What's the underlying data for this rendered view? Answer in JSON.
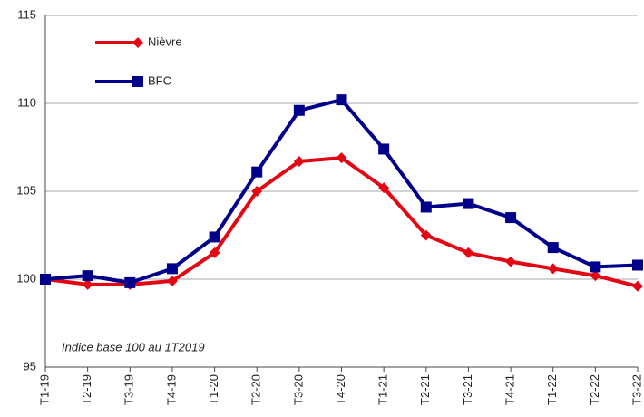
{
  "chart_data": {
    "type": "line",
    "annotation": "Indice base 100 au 1T2019",
    "categories": [
      "T1-19",
      "T2-19",
      "T3-19",
      "T4-19",
      "T1-20",
      "T2-20",
      "T3-20",
      "T4-20",
      "T1-21",
      "T2-21",
      "T3-21",
      "T4-21",
      "T1-22",
      "T2-22",
      "T3-22"
    ],
    "series": [
      {
        "name": "Nièvre",
        "color": "#e30613",
        "marker": "diamond",
        "values": [
          100,
          99.7,
          99.7,
          99.9,
          101.5,
          105.0,
          106.7,
          106.9,
          105.2,
          102.5,
          101.5,
          101.0,
          100.6,
          100.2,
          99.6
        ]
      },
      {
        "name": "BFC",
        "color": "#00008b",
        "marker": "square",
        "values": [
          100,
          100.2,
          99.8,
          100.6,
          102.4,
          106.1,
          109.6,
          110.2,
          107.4,
          104.1,
          104.3,
          103.5,
          101.8,
          100.7,
          100.8
        ]
      }
    ],
    "ylim": [
      95,
      115
    ],
    "yticks": [
      95,
      100,
      105,
      110,
      115
    ],
    "grid": true
  }
}
